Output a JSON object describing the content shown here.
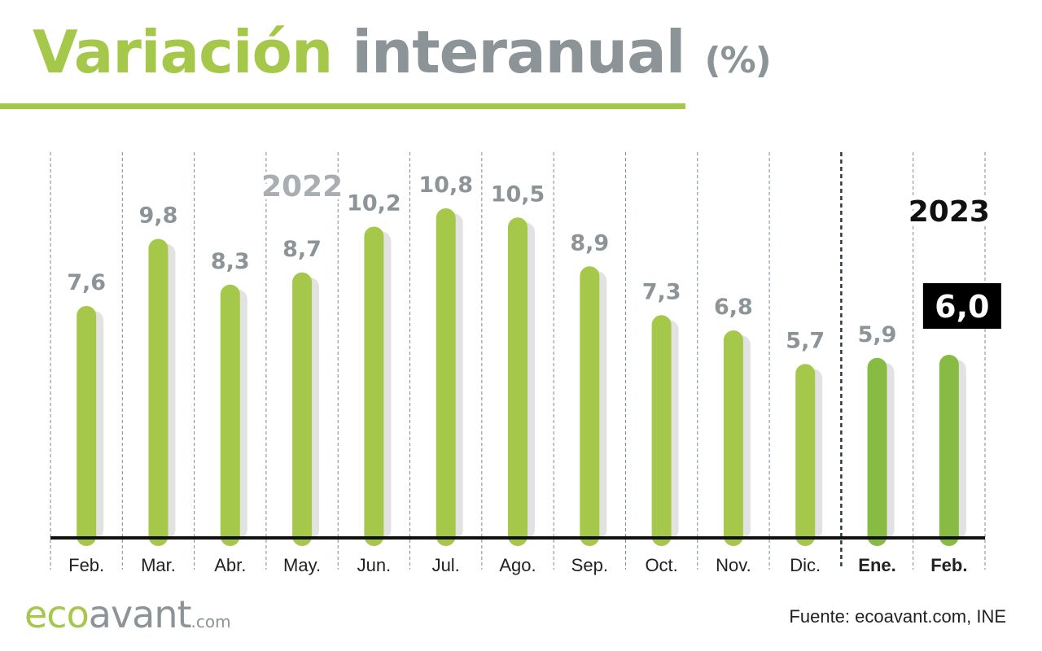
{
  "title": {
    "part1": "Variación",
    "part2": "interanual",
    "part3": "(%)"
  },
  "logo": {
    "eco": "eco",
    "avant": "avant",
    "com": ".com"
  },
  "source": "Fuente: ecoavant.com, INE",
  "colors": {
    "accent": "#a6c84a",
    "accent_2023": "#88bb44",
    "gray_text": "#8c9498",
    "shadow": "#e2e2e2",
    "axis": "#111111",
    "highlight_bg": "#000000",
    "highlight_text": "#ffffff"
  },
  "chart_data": {
    "type": "bar",
    "title": "Variación interanual (%)",
    "categories": [
      "Feb.",
      "Mar.",
      "Abr.",
      "May.",
      "Jun.",
      "Jul.",
      "Ago.",
      "Sep.",
      "Oct.",
      "Nov.",
      "Dic.",
      "Ene.",
      "Feb."
    ],
    "values": [
      7.6,
      9.8,
      8.3,
      8.7,
      10.2,
      10.8,
      10.5,
      8.9,
      7.3,
      6.8,
      5.7,
      5.9,
      6.0
    ],
    "value_labels": [
      "7,6",
      "9,8",
      "8,3",
      "8,7",
      "10,2",
      "10,8",
      "10,5",
      "8,9",
      "7,3",
      "6,8",
      "5,7",
      "5,9",
      "6,0"
    ],
    "year_labels": [
      {
        "text": "2022",
        "category_index": 3
      },
      {
        "text": "2023",
        "category_index": 12
      }
    ],
    "year_of_category": [
      2022,
      2022,
      2022,
      2022,
      2022,
      2022,
      2022,
      2022,
      2022,
      2022,
      2022,
      2023,
      2023
    ],
    "highlight_index": 12,
    "bold_categories": [
      11,
      12
    ],
    "ylim": [
      0,
      12
    ],
    "xlabel": "",
    "ylabel": "",
    "grid": "vertical dashed separators",
    "legend": "none"
  }
}
